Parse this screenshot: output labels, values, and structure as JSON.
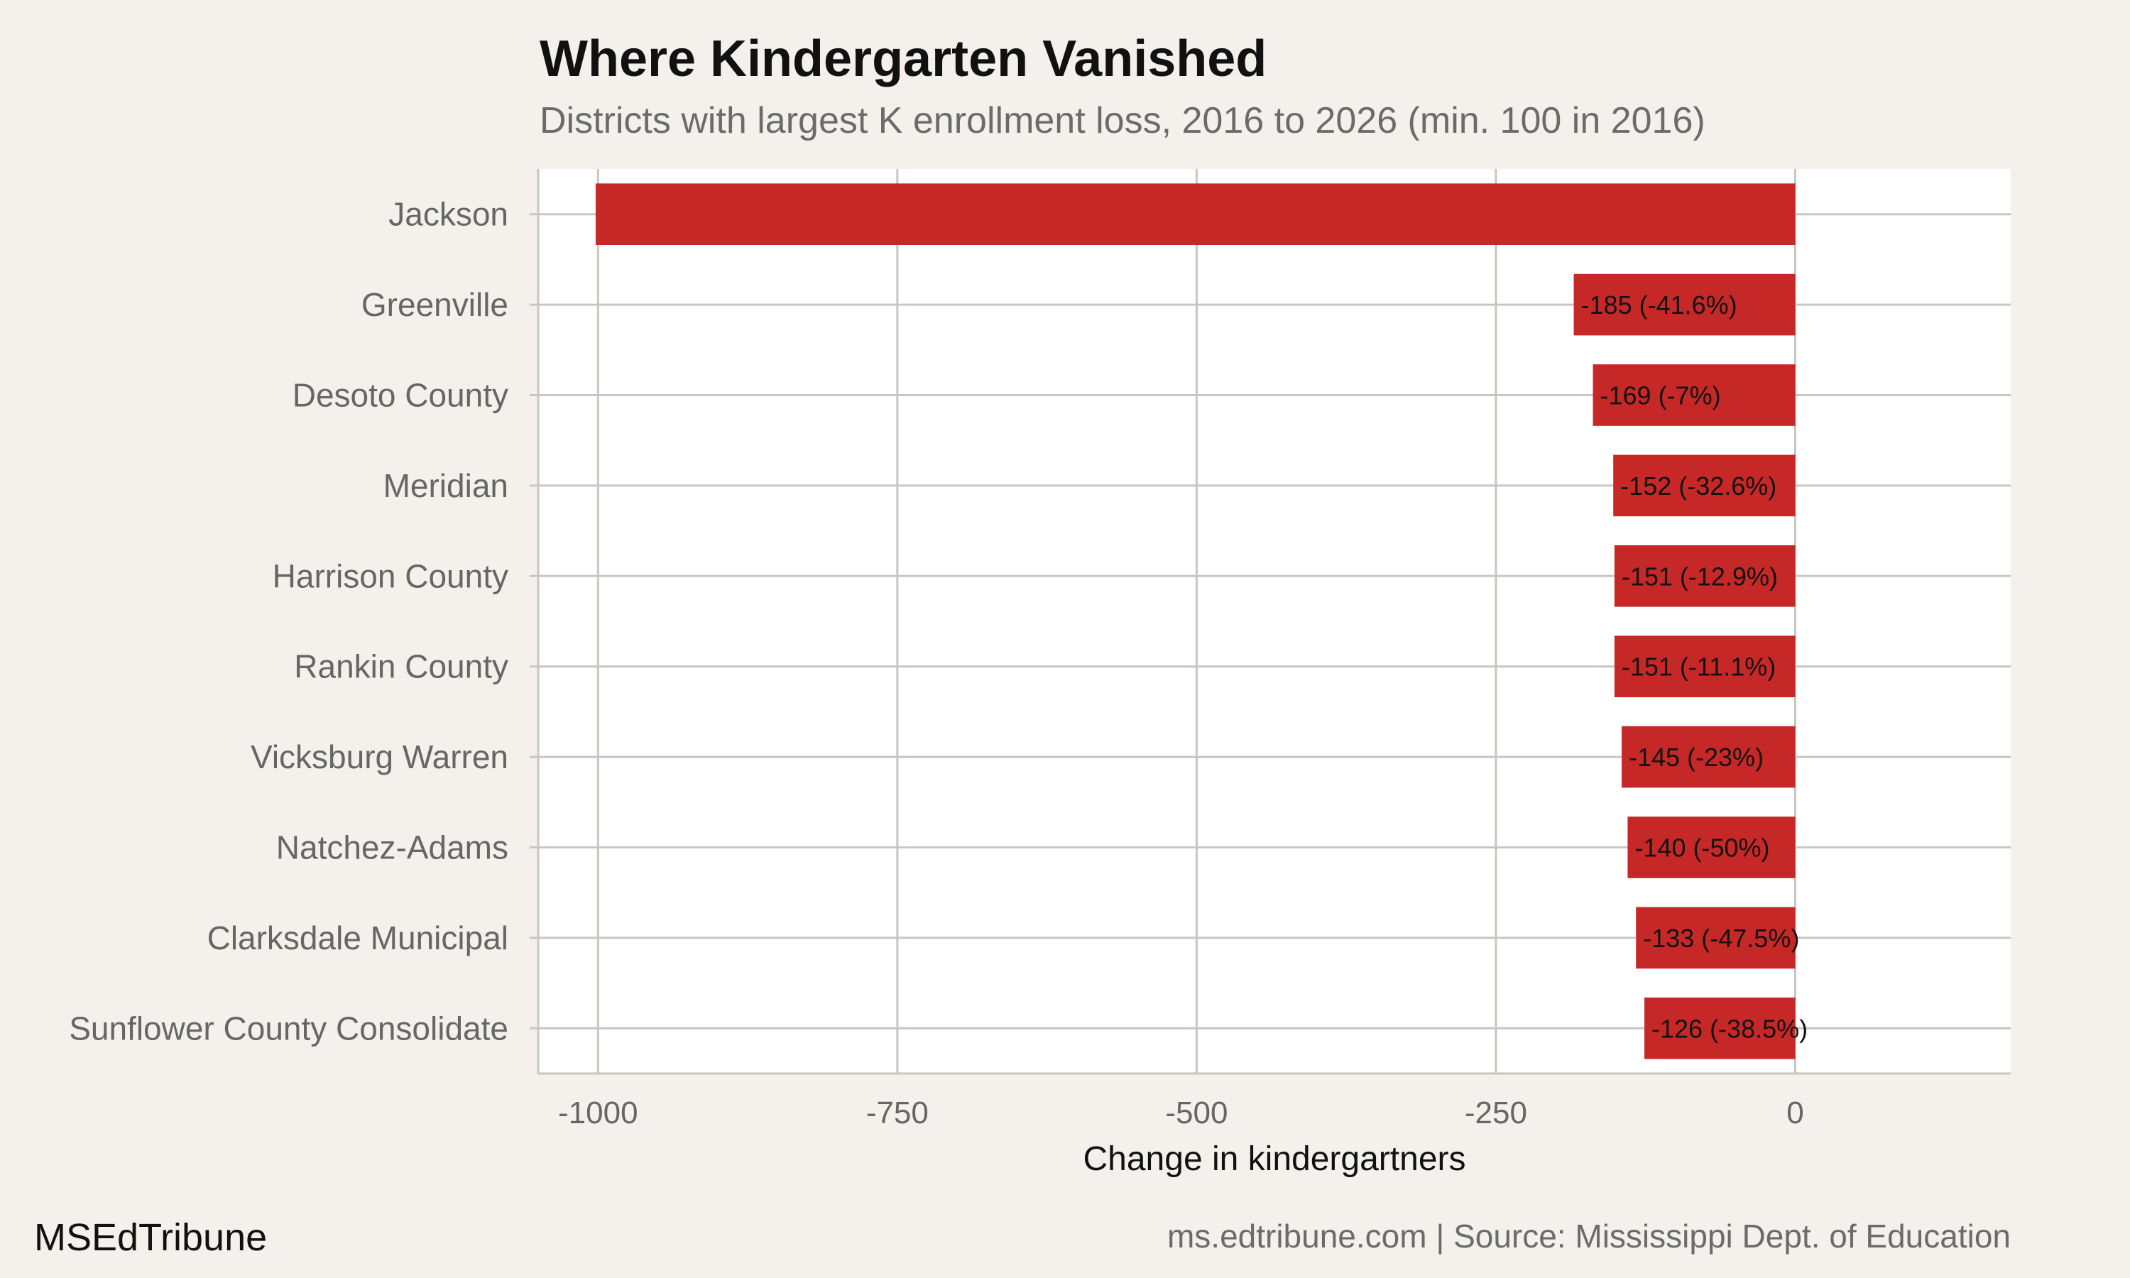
{
  "title": "Where Kindergarten Vanished",
  "subtitle": "Districts with largest K enrollment loss, 2016 to 2026 (min. 100 in 2016)",
  "footer": {
    "brand": "MSEdTribune",
    "source": "ms.edtribune.com | Source: Mississippi Dept. of Education"
  },
  "colors": {
    "bar": "#c62828",
    "background": "#f4f1ec",
    "panel": "#ffffff",
    "grid": "#c8c6c0"
  },
  "chart_data": {
    "type": "bar",
    "orientation": "horizontal",
    "categories": [
      "Jackson",
      "Greenville",
      "Desoto County",
      "Meridian",
      "Harrison County",
      "Rankin County",
      "Vicksburg Warren",
      "Natchez-Adams",
      "Clarksdale Municipal",
      "Sunflower County Consolidate"
    ],
    "values": [
      -1002,
      -185,
      -169,
      -152,
      -151,
      -151,
      -145,
      -140,
      -133,
      -126
    ],
    "data_labels": [
      "",
      "-185 (-41.6%)",
      "-169 (-7%)",
      "-152 (-32.6%)",
      "-151 (-12.9%)",
      "-151 (-11.1%)",
      "-145 (-23%)",
      "-140 (-50%)",
      "-133 (-47.5%)",
      "-126 (-38.5%)"
    ],
    "xlabel": "Change in kindergartners",
    "ylabel": "",
    "xlim": [
      -1050,
      180
    ],
    "xticks": [
      -1000,
      -750,
      -500,
      -250,
      0
    ],
    "xtick_labels": [
      "-1000",
      "-750",
      "-500",
      "-250",
      "0"
    ],
    "grid": true,
    "legend": "none"
  }
}
